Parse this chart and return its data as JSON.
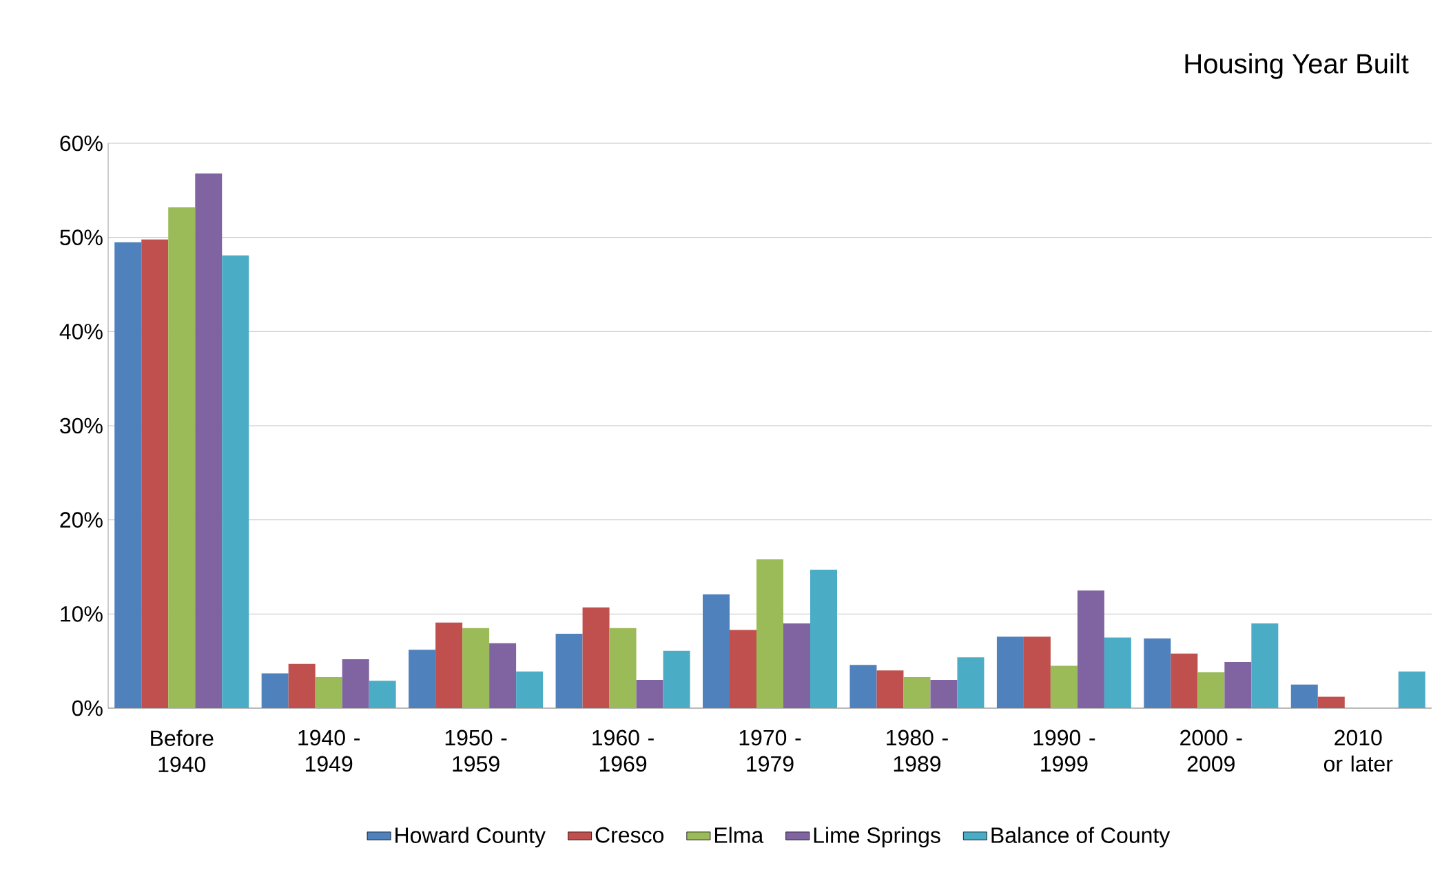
{
  "chart_data": {
    "type": "bar",
    "title": "Housing Year Built",
    "categories": [
      "Before 1940",
      "1940 - 1949",
      "1950 - 1959",
      "1960 - 1969",
      "1970 - 1979",
      "1980 - 1989",
      "1990 - 1999",
      "2000 - 2009",
      "2010 or later"
    ],
    "series": [
      {
        "name": "Howard County",
        "color": "#4f81bd",
        "values": [
          49.5,
          3.7,
          6.2,
          7.9,
          12.1,
          4.6,
          7.6,
          7.4,
          2.5
        ]
      },
      {
        "name": "Cresco",
        "color": "#c0504d",
        "values": [
          49.8,
          4.7,
          9.1,
          10.7,
          8.3,
          4.0,
          7.6,
          5.8,
          1.2
        ]
      },
      {
        "name": "Elma",
        "color": "#9bbb59",
        "values": [
          53.2,
          3.3,
          8.5,
          8.5,
          15.8,
          3.3,
          4.5,
          3.8,
          0
        ]
      },
      {
        "name": "Lime Springs",
        "color": "#8064a2",
        "values": [
          56.8,
          5.2,
          6.9,
          3.0,
          9.0,
          3.0,
          12.5,
          4.9,
          0
        ]
      },
      {
        "name": "Balance of County",
        "color": "#4bacc6",
        "values": [
          48.1,
          2.9,
          3.9,
          6.1,
          14.7,
          5.4,
          7.5,
          9.0,
          3.9
        ]
      }
    ],
    "ylim": [
      0,
      60
    ],
    "yticks": [
      {
        "value": 0,
        "label": "0%"
      },
      {
        "value": 10,
        "label": "10%"
      },
      {
        "value": 20,
        "label": "20%"
      },
      {
        "value": 30,
        "label": "30%"
      },
      {
        "value": 40,
        "label": "40%"
      },
      {
        "value": 50,
        "label": "50%"
      },
      {
        "value": 60,
        "label": "60%"
      }
    ],
    "grid": "y",
    "legend": "bottom"
  }
}
